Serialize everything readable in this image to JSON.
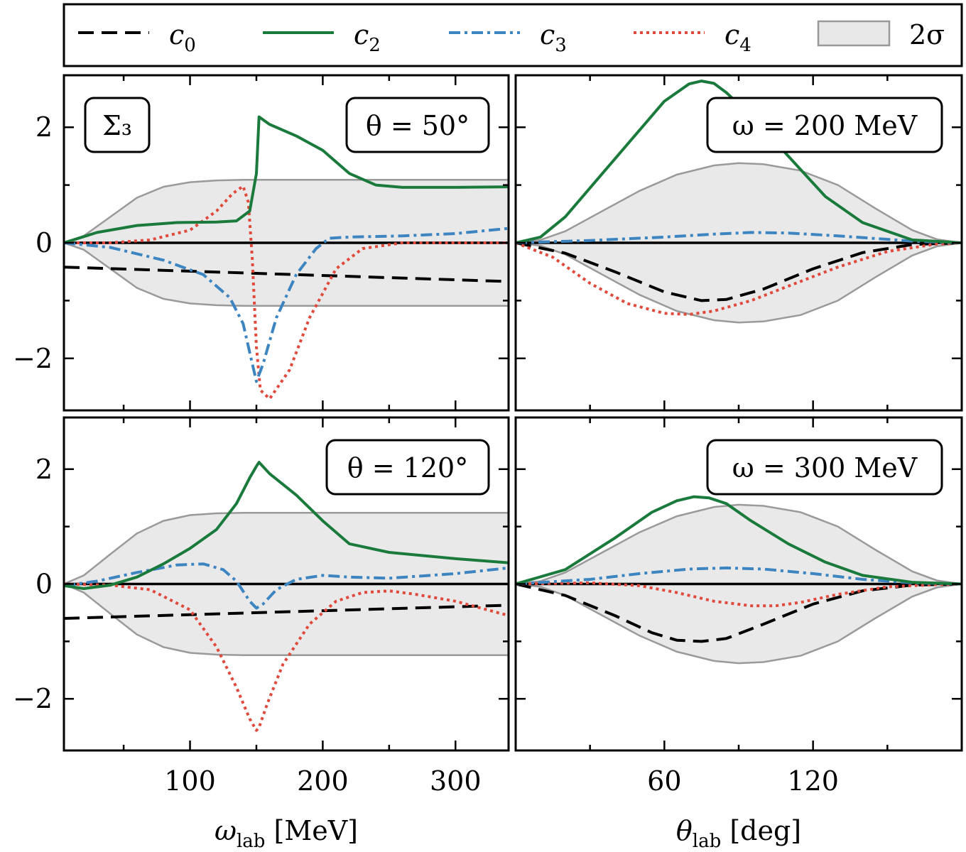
{
  "chart_data": {
    "type": "line",
    "panel_label": "Σ₃",
    "legend": {
      "placement": "top",
      "entries": [
        {
          "key": "c0",
          "label": "c",
          "sub": "0",
          "color": "#000000",
          "style": "dashed"
        },
        {
          "key": "c2",
          "label": "c",
          "sub": "2",
          "color": "#1a7a3c",
          "style": "solid"
        },
        {
          "key": "c3",
          "label": "c",
          "sub": "3",
          "color": "#3d85c0",
          "style": "dashdot"
        },
        {
          "key": "c4",
          "label": "c",
          "sub": "4",
          "color": "#e04a3c",
          "style": "dotted"
        },
        {
          "key": "band",
          "label": "2σ",
          "sub": "",
          "color": "#e8e8e8",
          "style": "band"
        }
      ]
    },
    "axes": {
      "left": {
        "xlabel": "ω",
        "xlabel_sub": "lab",
        "xlabel_unit": "[MeV]",
        "xlim": [
          5,
          340
        ],
        "xticks": [
          100,
          200,
          300
        ],
        "xticks_minor": [
          50,
          150,
          250
        ]
      },
      "right": {
        "xlabel": "θ",
        "xlabel_sub": "lab",
        "xlabel_unit": "[deg]",
        "xlim": [
          0,
          180
        ],
        "xticks": [
          60,
          120
        ],
        "xticks_minor": [
          30,
          90,
          150
        ]
      },
      "ylim": [
        -2.9,
        2.9
      ],
      "yticks": [
        -2,
        0,
        2
      ],
      "yticks_minor": [
        -1,
        1
      ]
    },
    "panels": [
      {
        "id": "top-left",
        "annotation": "θ = 50°",
        "band": {
          "x": [
            5,
            20,
            40,
            60,
            80,
            100,
            120,
            140,
            160,
            200,
            250,
            340
          ],
          "upper": [
            0,
            0.12,
            0.45,
            0.78,
            0.97,
            1.05,
            1.08,
            1.09,
            1.09,
            1.09,
            1.09,
            1.09
          ]
        },
        "series": {
          "c0": {
            "x": [
              5,
              340
            ],
            "y": [
              -0.42,
              -0.67
            ]
          },
          "c2": {
            "x": [
              5,
              30,
              60,
              90,
              120,
              135,
              145,
              150,
              152,
              160,
              180,
              200,
              220,
              240,
              260,
              300,
              340
            ],
            "y": [
              0,
              0.18,
              0.3,
              0.35,
              0.36,
              0.38,
              0.55,
              1.2,
              2.18,
              2.05,
              1.85,
              1.6,
              1.2,
              1.0,
              0.96,
              0.96,
              0.97
            ]
          },
          "c3": {
            "x": [
              5,
              40,
              80,
              110,
              130,
              140,
              146,
              150,
              155,
              165,
              180,
              195,
              205,
              220,
              260,
              300,
              340
            ],
            "y": [
              0,
              -0.08,
              -0.3,
              -0.55,
              -0.95,
              -1.4,
              -2.0,
              -2.4,
              -2.1,
              -1.3,
              -0.55,
              -0.1,
              0.08,
              0.1,
              0.12,
              0.16,
              0.25
            ]
          },
          "c4": {
            "x": [
              5,
              40,
              70,
              100,
              120,
              132,
              140,
              144,
              147,
              150,
              153,
              160,
              175,
              190,
              210,
              230,
              260,
              300,
              340
            ],
            "y": [
              0,
              0.0,
              0.05,
              0.22,
              0.55,
              0.85,
              0.98,
              0.7,
              -0.3,
              -1.8,
              -2.55,
              -2.7,
              -2.2,
              -1.3,
              -0.45,
              -0.1,
              0.0,
              0.0,
              0.0
            ]
          }
        }
      },
      {
        "id": "top-right",
        "annotation": "ω = 200 MeV",
        "band": {
          "x": [
            0,
            10,
            20,
            35,
            50,
            65,
            80,
            90,
            100,
            115,
            130,
            145,
            160,
            170,
            180
          ],
          "upper": [
            0,
            0.05,
            0.2,
            0.55,
            0.9,
            1.18,
            1.34,
            1.38,
            1.36,
            1.25,
            1.0,
            0.6,
            0.22,
            0.06,
            0
          ]
        },
        "series": {
          "c0": {
            "x": [
              0,
              20,
              40,
              60,
              75,
              85,
              100,
              120,
              140,
              160,
              180
            ],
            "y": [
              0,
              -0.18,
              -0.5,
              -0.85,
              -1.0,
              -0.98,
              -0.8,
              -0.45,
              -0.17,
              -0.03,
              0
            ]
          },
          "c2": {
            "x": [
              0,
              10,
              20,
              35,
              50,
              60,
              70,
              75,
              80,
              85,
              95,
              110,
              125,
              140,
              160,
              180
            ],
            "y": [
              0,
              0.1,
              0.45,
              1.2,
              1.95,
              2.45,
              2.75,
              2.8,
              2.76,
              2.6,
              2.2,
              1.5,
              0.8,
              0.35,
              0.05,
              0
            ]
          },
          "c3": {
            "x": [
              0,
              30,
              60,
              80,
              95,
              110,
              130,
              160,
              180
            ],
            "y": [
              0,
              0.04,
              0.1,
              0.15,
              0.18,
              0.17,
              0.12,
              0.03,
              0
            ]
          },
          "c4": {
            "x": [
              0,
              15,
              30,
              45,
              60,
              70,
              80,
              95,
              110,
              130,
              150,
              170,
              180
            ],
            "y": [
              0,
              -0.25,
              -0.7,
              -1.05,
              -1.22,
              -1.24,
              -1.18,
              -1.0,
              -0.75,
              -0.42,
              -0.15,
              -0.02,
              0
            ]
          }
        }
      },
      {
        "id": "bottom-left",
        "annotation": "θ = 120°",
        "band": {
          "x": [
            5,
            20,
            40,
            60,
            80,
            100,
            120,
            140,
            160,
            200,
            250,
            340
          ],
          "upper": [
            0,
            0.15,
            0.52,
            0.88,
            1.1,
            1.2,
            1.23,
            1.24,
            1.24,
            1.24,
            1.24,
            1.24
          ]
        },
        "series": {
          "c0": {
            "x": [
              5,
              340
            ],
            "y": [
              -0.6,
              -0.37
            ]
          },
          "c2": {
            "x": [
              5,
              20,
              40,
              60,
              80,
              100,
              120,
              135,
              145,
              150,
              152,
              160,
              180,
              200,
              220,
              250,
              300,
              340
            ],
            "y": [
              -0.03,
              -0.08,
              -0.02,
              0.12,
              0.35,
              0.62,
              0.95,
              1.4,
              1.85,
              2.05,
              2.12,
              1.92,
              1.55,
              1.1,
              0.7,
              0.55,
              0.44,
              0.37
            ]
          },
          "c3": {
            "x": [
              5,
              30,
              60,
              90,
              110,
              125,
              135,
              145,
              150,
              155,
              165,
              180,
              200,
              220,
              250,
              300,
              340
            ],
            "y": [
              -0.03,
              0.05,
              0.2,
              0.33,
              0.35,
              0.25,
              0.05,
              -0.3,
              -0.42,
              -0.35,
              -0.1,
              0.08,
              0.15,
              0.12,
              0.1,
              0.18,
              0.28
            ]
          },
          "c4": {
            "x": [
              5,
              40,
              70,
              100,
              120,
              135,
              145,
              150,
              152,
              158,
              170,
              190,
              210,
              230,
              250,
              270,
              300,
              340
            ],
            "y": [
              0,
              -0.02,
              -0.1,
              -0.45,
              -1.1,
              -1.8,
              -2.35,
              -2.55,
              -2.5,
              -2.1,
              -1.4,
              -0.7,
              -0.3,
              -0.15,
              -0.12,
              -0.18,
              -0.3,
              -0.55
            ]
          }
        }
      },
      {
        "id": "bottom-right",
        "annotation": "ω = 300 MeV",
        "band": {
          "x": [
            0,
            10,
            20,
            35,
            50,
            65,
            80,
            90,
            100,
            115,
            130,
            145,
            160,
            170,
            180
          ],
          "upper": [
            0,
            0.05,
            0.2,
            0.55,
            0.9,
            1.18,
            1.34,
            1.38,
            1.36,
            1.25,
            1.0,
            0.6,
            0.22,
            0.06,
            0
          ]
        },
        "series": {
          "c0": {
            "x": [
              0,
              20,
              40,
              55,
              65,
              75,
              85,
              100,
              120,
              140,
              160,
              180
            ],
            "y": [
              0,
              -0.2,
              -0.55,
              -0.85,
              -0.98,
              -1.0,
              -0.95,
              -0.7,
              -0.35,
              -0.12,
              -0.02,
              0
            ]
          },
          "c2": {
            "x": [
              0,
              20,
              40,
              55,
              65,
              72,
              78,
              85,
              95,
              110,
              125,
              140,
              160,
              180
            ],
            "y": [
              0,
              0.25,
              0.8,
              1.25,
              1.45,
              1.52,
              1.5,
              1.4,
              1.1,
              0.7,
              0.38,
              0.15,
              0.03,
              0
            ]
          },
          "c3": {
            "x": [
              0,
              30,
              50,
              70,
              85,
              100,
              120,
              140,
              160,
              180
            ],
            "y": [
              0,
              0.08,
              0.18,
              0.26,
              0.28,
              0.26,
              0.18,
              0.08,
              0.02,
              0
            ]
          },
          "c4": {
            "x": [
              0,
              30,
              50,
              65,
              80,
              95,
              105,
              115,
              130,
              150,
              170,
              180
            ],
            "y": [
              0,
              0.02,
              -0.03,
              -0.15,
              -0.3,
              -0.38,
              -0.38,
              -0.32,
              -0.18,
              -0.05,
              -0.01,
              0
            ]
          }
        }
      }
    ]
  }
}
